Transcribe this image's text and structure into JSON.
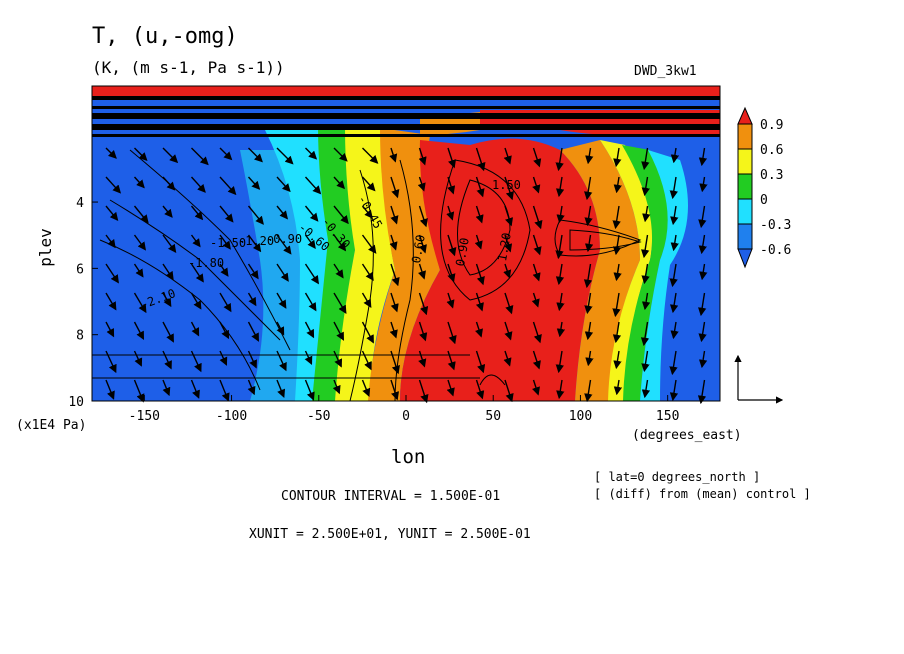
{
  "chart_data": {
    "type": "heatmap",
    "title": "T, (u,-omg)",
    "subtitle": "(K, (m s-1, Pa s-1))",
    "dataset": "DWD_3kw1",
    "xlabel": "lon",
    "x_unit": "(degrees_east)",
    "ylabel": "plev",
    "y_unit": "(x1E4 Pa)",
    "xlim": [
      -180,
      180
    ],
    "ylim": [
      10,
      0.5
    ],
    "x_ticks": [
      "-150",
      "-100",
      "-50",
      "0",
      "50",
      "100",
      "150"
    ],
    "x_tick_values": [
      -150,
      -100,
      -50,
      0,
      50,
      100,
      150
    ],
    "y_ticks": [
      "4",
      "6",
      "8",
      "10"
    ],
    "y_tick_values": [
      4,
      6,
      8,
      10
    ],
    "colorbar": {
      "labels": [
        "0.9",
        "0.6",
        "0.3",
        "0",
        "-0.3",
        "-0.6"
      ],
      "colors": [
        "#e8201b",
        "#f0900e",
        "#f5f51a",
        "#22cc22",
        "#20e0ff",
        "#1f80ee",
        "#1e5fe8"
      ]
    },
    "contour_labels": [
      "1.50",
      "1.20",
      "0.90",
      "0.60",
      "-0.60",
      "-0.90",
      "-1.20",
      "-1.50",
      "-1.80",
      "-2.10",
      "-0.30",
      "-0.45"
    ],
    "footer": {
      "contour_interval": "CONTOUR INTERVAL = 1.500E-01",
      "units": "XUNIT = 2.500E+01, YUNIT = 2.500E-01",
      "note1": "[ lat=0 degrees_north ]",
      "note2": "[ (diff) from (mean) control ]"
    }
  }
}
